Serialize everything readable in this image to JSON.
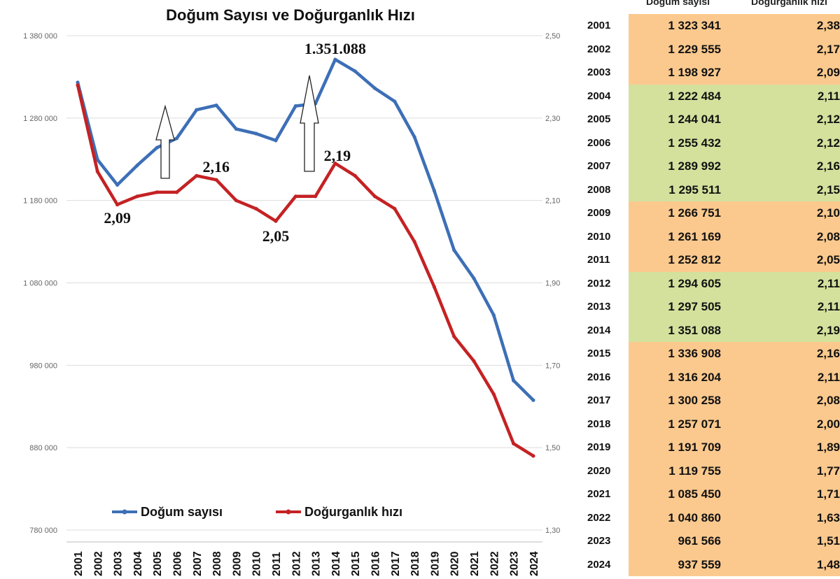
{
  "chart_data": {
    "type": "line",
    "title": "Doğum Sayısı ve Doğurganlık Hızı",
    "categories": [
      "2001",
      "2002",
      "2003",
      "2004",
      "2005",
      "2006",
      "2007",
      "2008",
      "2009",
      "2010",
      "2011",
      "2012",
      "2013",
      "2014",
      "2015",
      "2016",
      "2017",
      "2018",
      "2019",
      "2020",
      "2021",
      "2022",
      "2023",
      "2024"
    ],
    "series": [
      {
        "name": "Doğum sayısı",
        "axis": "left",
        "color": "#3d6fb6",
        "values": [
          1323341,
          1229555,
          1198927,
          1222484,
          1244041,
          1255432,
          1289992,
          1295511,
          1266751,
          1261169,
          1252812,
          1294605,
          1297505,
          1351088,
          1336908,
          1316204,
          1300258,
          1257071,
          1191709,
          1119755,
          1085450,
          1040860,
          961566,
          937559
        ]
      },
      {
        "name": "Doğurganlık hızı",
        "axis": "right",
        "color": "#c42224",
        "values": [
          2.38,
          2.17,
          2.09,
          2.11,
          2.12,
          2.12,
          2.16,
          2.15,
          2.1,
          2.08,
          2.05,
          2.11,
          2.11,
          2.19,
          2.16,
          2.11,
          2.08,
          2.0,
          1.89,
          1.77,
          1.71,
          1.63,
          1.51,
          1.48
        ]
      }
    ],
    "y_left": {
      "ticks": [
        "1 380 000",
        "1 280 000",
        "1 180 000",
        "1 080 000",
        "980 000",
        "880 000",
        "780 000"
      ],
      "range": [
        780000,
        1380000
      ]
    },
    "y_right": {
      "ticks": [
        "2,50",
        "2,30",
        "2,10",
        "1,90",
        "1,70",
        "1,50",
        "1,30"
      ],
      "range": [
        1.3,
        2.5
      ]
    },
    "annotations": [
      {
        "text": "1.351.088",
        "year": "2014"
      },
      {
        "text": "2,09",
        "year": "2003"
      },
      {
        "text": "2,16",
        "year": "2007"
      },
      {
        "text": "2,05",
        "year": "2011"
      },
      {
        "text": "2,19",
        "year": "2014"
      }
    ],
    "legend": [
      "Doğum sayısı",
      "Doğurganlık hızı"
    ],
    "gridlines": true
  },
  "table": {
    "headers": [
      "Doğum sayısı",
      "Doğurganlık hızı"
    ],
    "rows": [
      {
        "year": "2001",
        "count": "1 323 341",
        "rate": "2,38",
        "color": "#fbc98e"
      },
      {
        "year": "2002",
        "count": "1 229 555",
        "rate": "2,17",
        "color": "#fbc98e"
      },
      {
        "year": "2003",
        "count": "1 198 927",
        "rate": "2,09",
        "color": "#fbc98e"
      },
      {
        "year": "2004",
        "count": "1 222 484",
        "rate": "2,11",
        "color": "#d3e19d"
      },
      {
        "year": "2005",
        "count": "1 244 041",
        "rate": "2,12",
        "color": "#d3e19d"
      },
      {
        "year": "2006",
        "count": "1 255 432",
        "rate": "2,12",
        "color": "#d3e19d"
      },
      {
        "year": "2007",
        "count": "1 289 992",
        "rate": "2,16",
        "color": "#d3e19d"
      },
      {
        "year": "2008",
        "count": "1 295 511",
        "rate": "2,15",
        "color": "#d3e19d"
      },
      {
        "year": "2009",
        "count": "1 266 751",
        "rate": "2,10",
        "color": "#fbc98e"
      },
      {
        "year": "2010",
        "count": "1 261 169",
        "rate": "2,08",
        "color": "#fbc98e"
      },
      {
        "year": "2011",
        "count": "1 252 812",
        "rate": "2,05",
        "color": "#fbc98e"
      },
      {
        "year": "2012",
        "count": "1 294 605",
        "rate": "2,11",
        "color": "#d3e19d"
      },
      {
        "year": "2013",
        "count": "1 297 505",
        "rate": "2,11",
        "color": "#d3e19d"
      },
      {
        "year": "2014",
        "count": "1 351 088",
        "rate": "2,19",
        "color": "#d3e19d"
      },
      {
        "year": "2015",
        "count": "1 336 908",
        "rate": "2,16",
        "color": "#fbc98e"
      },
      {
        "year": "2016",
        "count": "1 316 204",
        "rate": "2,11",
        "color": "#fbc98e"
      },
      {
        "year": "2017",
        "count": "1 300 258",
        "rate": "2,08",
        "color": "#fbc98e"
      },
      {
        "year": "2018",
        "count": "1 257 071",
        "rate": "2,00",
        "color": "#fbc98e"
      },
      {
        "year": "2019",
        "count": "1 191 709",
        "rate": "1,89",
        "color": "#fbc98e"
      },
      {
        "year": "2020",
        "count": "1 119 755",
        "rate": "1,77",
        "color": "#fbc98e"
      },
      {
        "year": "2021",
        "count": "1 085 450",
        "rate": "1,71",
        "color": "#fbc98e"
      },
      {
        "year": "2022",
        "count": "1 040 860",
        "rate": "1,63",
        "color": "#fbc98e"
      },
      {
        "year": "2023",
        "count": "961 566",
        "rate": "1,51",
        "color": "#fbc98e"
      },
      {
        "year": "2024",
        "count": "937 559",
        "rate": "1,48",
        "color": "#fbc98e"
      }
    ]
  }
}
